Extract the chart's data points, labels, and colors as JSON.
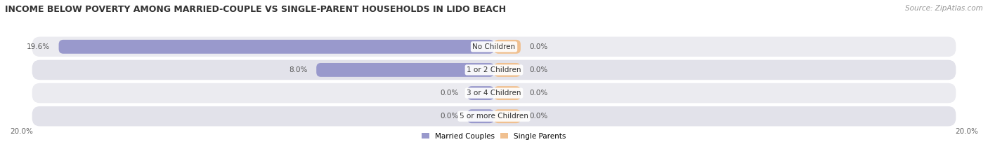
{
  "title": "INCOME BELOW POVERTY AMONG MARRIED-COUPLE VS SINGLE-PARENT HOUSEHOLDS IN LIDO BEACH",
  "source": "Source: ZipAtlas.com",
  "categories": [
    "No Children",
    "1 or 2 Children",
    "3 or 4 Children",
    "5 or more Children"
  ],
  "married_values": [
    19.6,
    8.0,
    0.0,
    0.0
  ],
  "single_values": [
    0.0,
    0.0,
    0.0,
    0.0
  ],
  "married_color": "#9999cc",
  "single_color": "#f0c090",
  "married_color_light": "#aaaadd",
  "single_color_light": "#f5d0a0",
  "bg_row_odd": "#ebebf0",
  "bg_row_even": "#e2e2ea",
  "max_val": 20.0,
  "title_fontsize": 9.0,
  "source_fontsize": 7.5,
  "label_fontsize": 7.5,
  "category_fontsize": 7.5,
  "legend_fontsize": 7.5,
  "axis_label_fontsize": 7.5,
  "stub_val": 1.2
}
